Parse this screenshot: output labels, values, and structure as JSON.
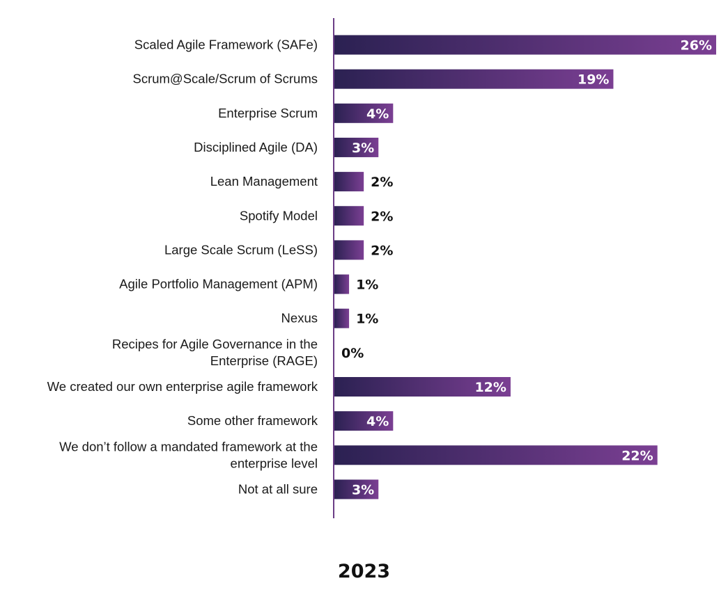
{
  "chart_data": {
    "type": "bar",
    "orientation": "horizontal",
    "categories": [
      [
        "Scaled Agile Framework (SAFe)"
      ],
      [
        "Scrum@Scale/Scrum of Scrums"
      ],
      [
        "Enterprise Scrum"
      ],
      [
        "Disciplined Agile (DA)"
      ],
      [
        "Lean Management"
      ],
      [
        "Spotify Model"
      ],
      [
        "Large Scale Scrum (LeSS)"
      ],
      [
        "Agile Portfolio Management (APM)"
      ],
      [
        "Nexus"
      ],
      [
        "Recipes for Agile Governance in the",
        "Enterprise (RAGE)"
      ],
      [
        "We created our own enterprise agile framework"
      ],
      [
        "Some other framework"
      ],
      [
        "We don’t follow a mandated framework at the",
        "enterprise level"
      ],
      [
        "Not at all sure"
      ]
    ],
    "values": [
      26,
      19,
      4,
      3,
      2,
      2,
      2,
      1,
      1,
      0,
      12,
      4,
      22,
      3
    ],
    "value_labels": [
      "26%",
      "19%",
      "4%",
      "3%",
      "2%",
      "2%",
      "2%",
      "1%",
      "1%",
      "0%",
      "12%",
      "4%",
      "22%",
      "3%"
    ],
    "xlim": [
      0,
      26
    ],
    "legend_title": "2023",
    "colors": {
      "bar_start": "#2b2152",
      "bar_end": "#7b3f93",
      "axis": "#6b3d86",
      "label_dark": "#111111",
      "label_light": "#ffffff"
    }
  }
}
